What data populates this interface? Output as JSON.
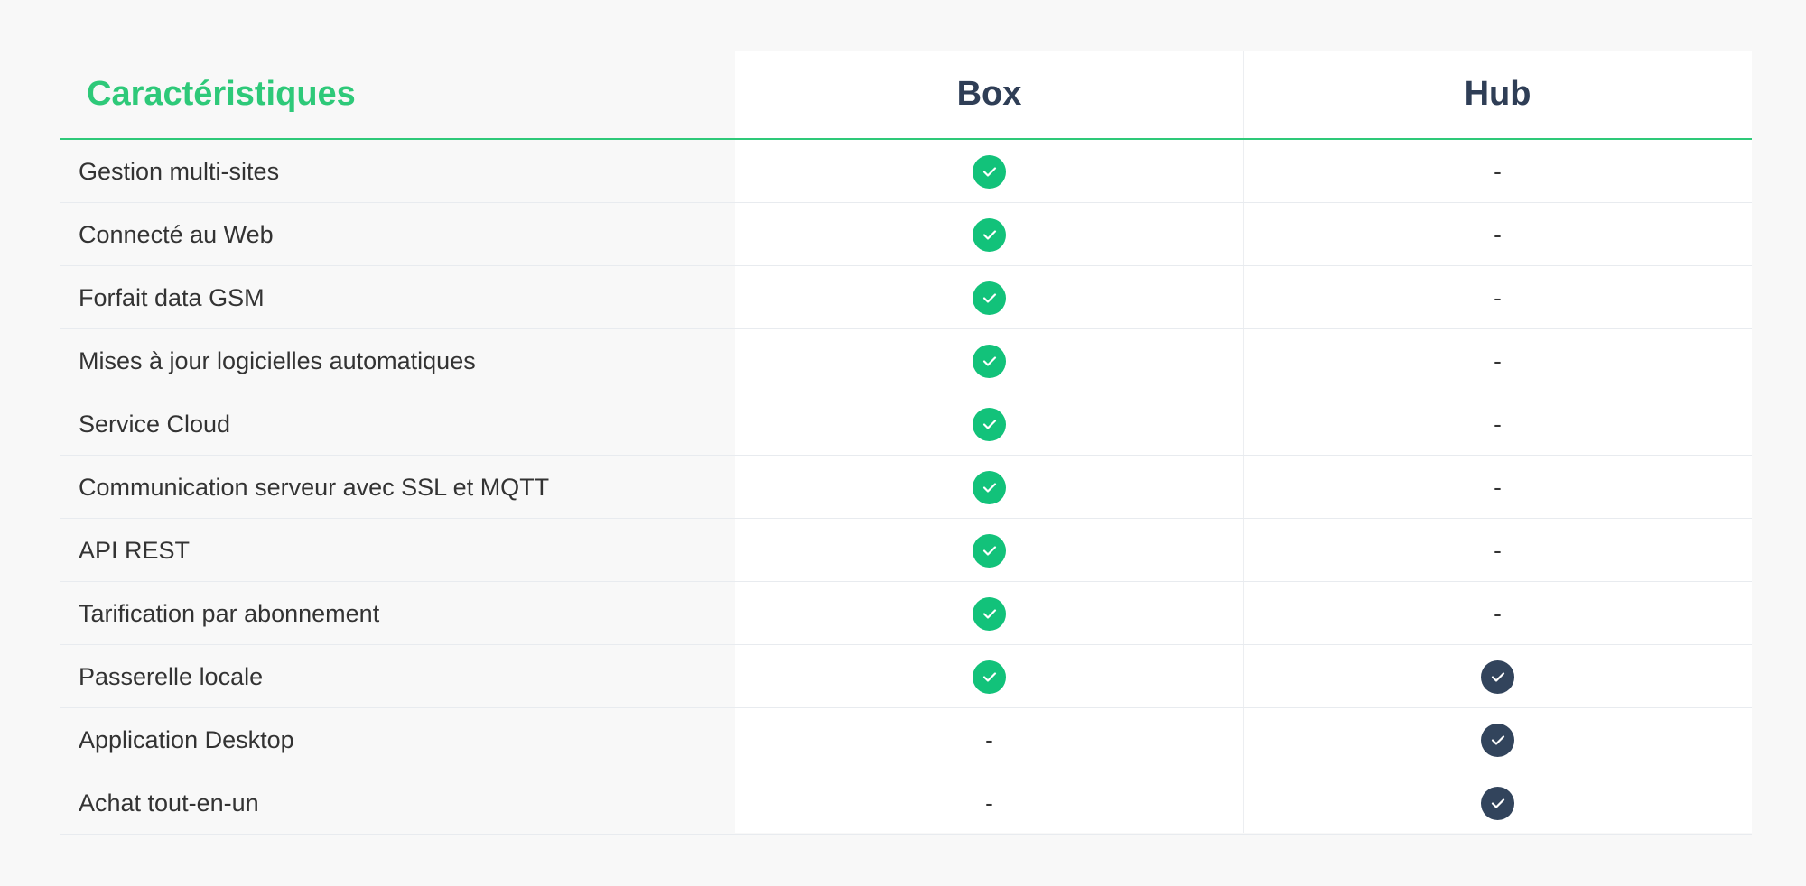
{
  "header": {
    "title": "Caractéristiques",
    "columns": [
      "Box",
      "Hub"
    ]
  },
  "colors": {
    "accent": "#2ec979",
    "box_check": "#12c27a",
    "hub_check": "#32445c"
  },
  "rows": [
    {
      "label": "Gestion multi-sites",
      "box": true,
      "hub": false
    },
    {
      "label": "Connecté au Web",
      "box": true,
      "hub": false
    },
    {
      "label": "Forfait data GSM",
      "box": true,
      "hub": false
    },
    {
      "label": "Mises à jour logicielles automatiques",
      "box": true,
      "hub": false
    },
    {
      "label": "Service Cloud",
      "box": true,
      "hub": false
    },
    {
      "label": "Communication serveur avec SSL et MQTT",
      "box": true,
      "hub": false
    },
    {
      "label": "API REST",
      "box": true,
      "hub": false
    },
    {
      "label": "Tarification par abonnement",
      "box": true,
      "hub": false
    },
    {
      "label": "Passerelle locale",
      "box": true,
      "hub": true
    },
    {
      "label": "Application Desktop",
      "box": false,
      "hub": true
    },
    {
      "label": "Achat tout-en-un",
      "box": false,
      "hub": true
    }
  ],
  "dash": "-"
}
